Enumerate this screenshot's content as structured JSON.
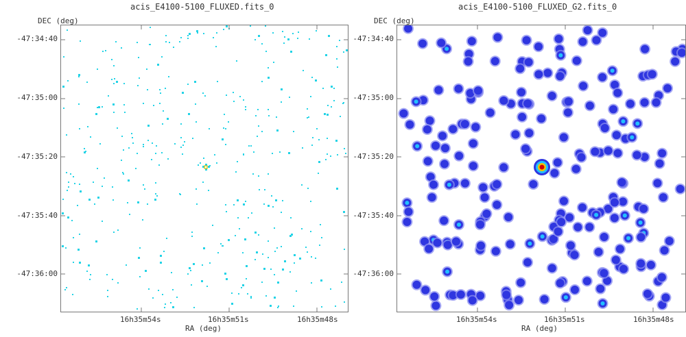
{
  "panels": [
    {
      "title": "acis_E4100-5100_FLUXED.fits_0",
      "y_axis_label": "DEC (deg)",
      "x_axis_label": "RA (deg)",
      "y_ticks": [
        "-47:34:40",
        "-47:35:00",
        "-47:35:20",
        "-47:35:40",
        "-47:36:00"
      ],
      "x_ticks": [
        "16h35m54s",
        "16h35m51s",
        "16h35m48s"
      ],
      "style": "raw-counts",
      "event_color": "#22d3e6",
      "source_color": "#d4c400"
    },
    {
      "title": "acis_E4100-5100_FLUXED_G2.fits_0",
      "y_axis_label": "DEC (deg)",
      "x_axis_label": "RA (deg)",
      "y_ticks": [
        "-47:34:40",
        "-47:35:00",
        "-47:35:20",
        "-47:35:40",
        "-47:36:00"
      ],
      "x_ticks": [
        "16h35m54s",
        "16h35m51s",
        "16h35m48s"
      ],
      "style": "gaussian-smoothed",
      "blob_color": "#2f36e0",
      "halo_color": "#8a8cf0",
      "source_colors": [
        "#d40000",
        "#f2c200",
        "#22c0ff",
        "#2f36e0"
      ]
    }
  ]
}
